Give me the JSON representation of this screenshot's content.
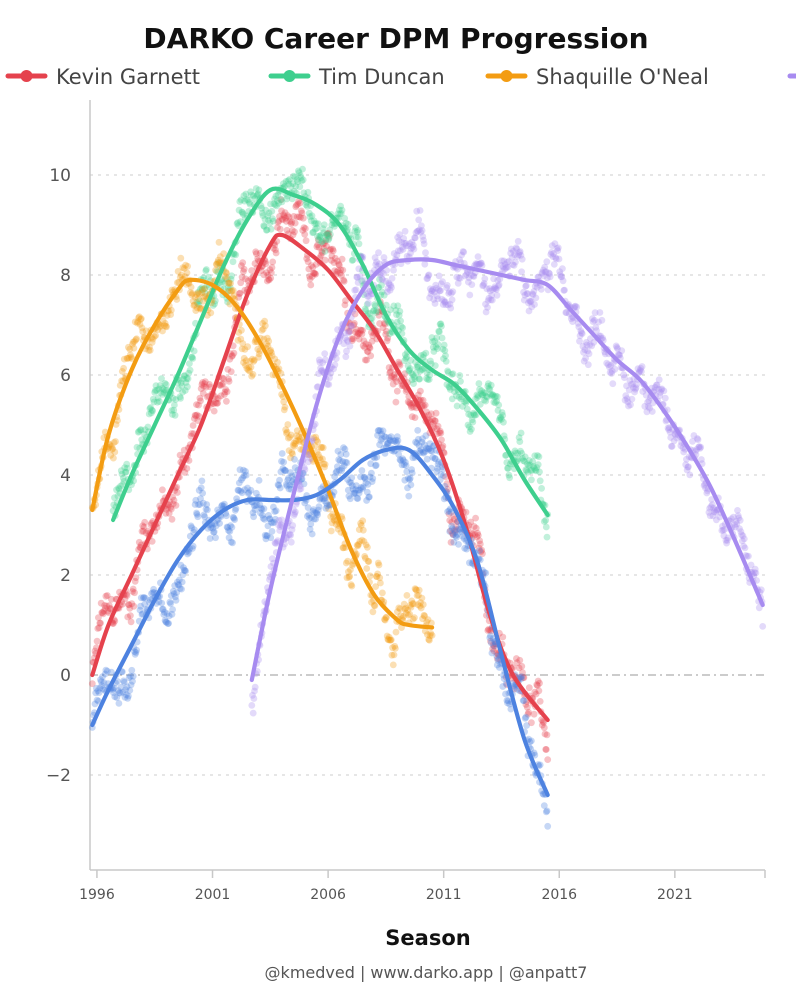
{
  "chart_data": {
    "type": "scatter",
    "title": "DARKO Career DPM Progression",
    "xlabel": "Season",
    "ylabel": "",
    "credit": "@kmedved | www.darko.app | @anpatt7",
    "xlim": [
      1995.7,
      2024.9
    ],
    "ylim": [
      -3.9,
      11.5
    ],
    "yticks": [
      -2,
      0,
      2,
      4,
      6,
      8,
      10
    ],
    "xticks": [
      1996,
      2001,
      2006,
      2011,
      2016,
      2021
    ],
    "legend_position": "top",
    "series": [
      {
        "name": "Kevin Garnett",
        "color": "#e5424d",
        "x": [
          1995.8,
          1996.5,
          1997.5,
          1998.5,
          1999.5,
          2000.5,
          2001.5,
          2002.5,
          2003.5,
          2004.0,
          2005.0,
          2006.0,
          2007.0,
          2008.0,
          2009.0,
          2010.0,
          2011.0,
          2012.0,
          2013.0,
          2014.0,
          2015.5
        ],
        "values": [
          0.0,
          1.0,
          2.0,
          3.0,
          4.0,
          5.0,
          6.3,
          7.6,
          8.6,
          8.8,
          8.5,
          8.1,
          7.5,
          6.9,
          6.1,
          5.3,
          4.3,
          2.9,
          1.2,
          0.0,
          -0.9
        ]
      },
      {
        "name": "Tim Duncan",
        "color": "#3ecf8e",
        "x": [
          1996.7,
          1997.5,
          1998.5,
          1999.5,
          2000.5,
          2001.5,
          2002.5,
          2003.5,
          2004.5,
          2005.5,
          2006.5,
          2007.5,
          2008.5,
          2009.5,
          2010.5,
          2011.5,
          2012.5,
          2013.5,
          2014.5,
          2015.5
        ],
        "values": [
          3.1,
          4.0,
          5.0,
          6.0,
          7.1,
          8.2,
          9.1,
          9.7,
          9.6,
          9.4,
          9.0,
          8.2,
          7.2,
          6.5,
          6.1,
          5.8,
          5.3,
          4.7,
          3.9,
          3.2
        ]
      },
      {
        "name": "Shaquille O'Neal",
        "color": "#f39c12",
        "x": [
          1995.8,
          1996.5,
          1997.5,
          1998.5,
          1999.5,
          2000.0,
          2001.0,
          2002.0,
          2003.0,
          2004.0,
          2005.0,
          2006.0,
          2007.0,
          2008.0,
          2009.0,
          2009.5,
          2010.5
        ],
        "values": [
          3.3,
          4.8,
          6.1,
          7.0,
          7.7,
          7.9,
          7.8,
          7.4,
          6.7,
          5.8,
          4.8,
          3.7,
          2.5,
          1.6,
          1.1,
          1.0,
          0.95
        ]
      },
      {
        "name": "",
        "color": "#4d82e0",
        "x": [
          1995.8,
          1996.5,
          1997.5,
          1998.5,
          1999.5,
          2000.5,
          2001.5,
          2002.5,
          2003.5,
          2004.5,
          2005.5,
          2006.5,
          2007.5,
          2008.5,
          2009.5,
          2010.5,
          2011.5,
          2012.5,
          2013.5,
          2014.5,
          2015.5
        ],
        "values": [
          -1.0,
          -0.3,
          0.6,
          1.5,
          2.3,
          2.9,
          3.3,
          3.5,
          3.5,
          3.5,
          3.6,
          3.9,
          4.3,
          4.5,
          4.5,
          4.0,
          3.3,
          2.2,
          0.4,
          -1.3,
          -2.4
        ]
      },
      {
        "name": "",
        "color": "#a78bf0",
        "x": [
          2002.7,
          2003.5,
          2004.5,
          2005.5,
          2006.5,
          2007.5,
          2008.5,
          2009.5,
          2010.5,
          2011.5,
          2012.5,
          2013.5,
          2014.5,
          2015.5,
          2016.5,
          2017.5,
          2018.5,
          2019.5,
          2020.5,
          2021.5,
          2022.5,
          2023.5,
          2024.8
        ],
        "values": [
          -0.1,
          1.7,
          3.6,
          5.4,
          6.8,
          7.7,
          8.2,
          8.3,
          8.3,
          8.2,
          8.1,
          8.0,
          7.9,
          7.8,
          7.3,
          6.8,
          6.3,
          5.9,
          5.3,
          4.6,
          3.8,
          2.8,
          1.4
        ]
      }
    ]
  }
}
